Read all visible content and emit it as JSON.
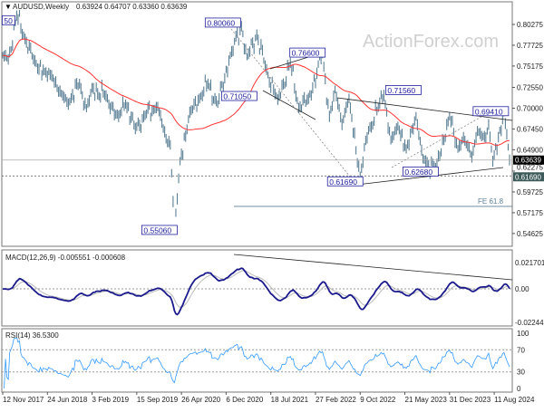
{
  "header": {
    "symbol": "AUDUSD,Weekly",
    "ohlc": "0.63924 0.64707 0.63360 0.63639"
  },
  "watermark": "ActionForex.com",
  "chart_data": [
    {
      "type": "line",
      "title": "AUDUSD,Weekly",
      "ylim": [
        0.54625,
        0.80275
      ],
      "y_ticks": [
        "0.80275",
        "0.77725",
        "0.75175",
        "0.72550",
        "0.70000",
        "0.67450",
        "0.64900",
        "0.62275",
        "0.59725",
        "0.57175",
        "0.54625"
      ],
      "x_ticks": [
        "12 Nov 2017",
        "24 Jun 2018",
        "3 Feb 2019",
        "15 Sep 2019",
        "26 Apr 2020",
        "6 Dec 2020",
        "18 Jul 2021",
        "27 Feb 2022",
        "9 Oct 2022",
        "21 May 2023",
        "31 Dec 2023",
        "11 Aug 2024"
      ],
      "x_tick_dates": [
        "2017-11-12",
        "2018-06-24",
        "2019-02-03",
        "2019-09-15",
        "2020-04-26",
        "2020-12-06",
        "2021-07-18",
        "2022-02-27",
        "2022-10-09",
        "2023-05-21",
        "2023-12-31",
        "2024-08-11"
      ],
      "series": [
        {
          "name": "price",
          "points": [
            [
              "2017-11-12",
              0.765
            ],
            [
              "2017-12-10",
              0.76
            ],
            [
              "2018-01-21",
              0.8135
            ],
            [
              "2018-03-04",
              0.785
            ],
            [
              "2018-04-15",
              0.76
            ],
            [
              "2018-06-10",
              0.745
            ],
            [
              "2018-07-15",
              0.74
            ],
            [
              "2018-09-02",
              0.718
            ],
            [
              "2018-10-07",
              0.705
            ],
            [
              "2018-12-02",
              0.73
            ],
            [
              "2019-01-06",
              0.7
            ],
            [
              "2019-02-03",
              0.725
            ],
            [
              "2019-04-14",
              0.715
            ],
            [
              "2019-06-16",
              0.69
            ],
            [
              "2019-07-21",
              0.705
            ],
            [
              "2019-09-08",
              0.675
            ],
            [
              "2019-10-20",
              0.69
            ],
            [
              "2019-12-29",
              0.702
            ],
            [
              "2020-01-26",
              0.675
            ],
            [
              "2020-03-01",
              0.655
            ],
            [
              "2020-03-22",
              0.5506
            ],
            [
              "2020-04-19",
              0.635
            ],
            [
              "2020-06-07",
              0.695
            ],
            [
              "2020-07-26",
              0.712
            ],
            [
              "2020-09-06",
              0.73
            ],
            [
              "2020-10-25",
              0.705
            ],
            [
              "2020-12-27",
              0.765
            ],
            [
              "2021-02-21",
              0.8006
            ],
            [
              "2021-03-21",
              0.763
            ],
            [
              "2021-05-09",
              0.79
            ],
            [
              "2021-06-20",
              0.752
            ],
            [
              "2021-08-22",
              0.7105
            ],
            [
              "2021-10-24",
              0.7556
            ],
            [
              "2021-12-05",
              0.7
            ],
            [
              "2022-01-23",
              0.712
            ],
            [
              "2022-04-03",
              0.766
            ],
            [
              "2022-05-08",
              0.69
            ],
            [
              "2022-06-05",
              0.723
            ],
            [
              "2022-07-10",
              0.68
            ],
            [
              "2022-08-14",
              0.712
            ],
            [
              "2022-10-09",
              0.6169
            ],
            [
              "2022-11-20",
              0.673
            ],
            [
              "2023-02-05",
              0.7156
            ],
            [
              "2023-03-12",
              0.661
            ],
            [
              "2023-04-16",
              0.678
            ],
            [
              "2023-05-28",
              0.65
            ],
            [
              "2023-07-16",
              0.69
            ],
            [
              "2023-08-20",
              0.638
            ],
            [
              "2023-10-22",
              0.6268
            ],
            [
              "2023-12-31",
              0.69
            ],
            [
              "2024-02-11",
              0.65
            ],
            [
              "2024-03-10",
              0.664
            ],
            [
              "2024-04-21",
              0.64
            ],
            [
              "2024-05-19",
              0.672
            ],
            [
              "2024-06-30",
              0.664
            ],
            [
              "2024-07-14",
              0.68
            ],
            [
              "2024-08-04",
              0.6348
            ],
            [
              "2024-09-29",
              0.6941
            ],
            [
              "2024-10-13",
              0.668
            ],
            [
              "2024-10-27",
              0.6364
            ]
          ]
        }
      ],
      "ma_color": "#ff3333",
      "bar_color": "#5b7f95",
      "current_price": "0.63639",
      "support_price": "0.61690",
      "annotations": [
        {
          "text": "50",
          "date": "2018-01-21",
          "price": 0.8135
        },
        {
          "text": "0.80060",
          "date": "2021-02-21",
          "price": 0.8006
        },
        {
          "text": "0.76600",
          "date": "2022-04-03",
          "price": 0.766
        },
        {
          "text": "0.71050",
          "date": "2021-08-22",
          "price": 0.7105
        },
        {
          "text": "0.71560",
          "date": "2023-02-05",
          "price": 0.7156
        },
        {
          "text": "0.69410",
          "date": "2024-09-29",
          "price": 0.6941
        },
        {
          "text": "0.62680",
          "date": "2023-10-22",
          "price": 0.6268
        },
        {
          "text": "0.61690",
          "date": "2022-10-09",
          "price": 0.6169
        },
        {
          "text": "0.55060",
          "date": "2020-03-22",
          "price": 0.5506
        }
      ],
      "fe_label": "FE 61.8",
      "fe_price": 0.5795
    },
    {
      "type": "line",
      "title": "MACD(12,26,9) -0.005551 -0.000608",
      "ylim": [
        -0.022445,
        0.021701
      ],
      "y_ticks": [
        "0.021701",
        "0.00",
        "-0.022445"
      ],
      "series_colors": {
        "macd": "#1a1a8c",
        "signal": "#bbbbbb"
      }
    },
    {
      "type": "line",
      "title": "RSI(14) 36.5300",
      "ylim": [
        0,
        100
      ],
      "y_ticks": [
        "100",
        "70",
        "30",
        "0"
      ],
      "color": "#3399ff"
    }
  ]
}
